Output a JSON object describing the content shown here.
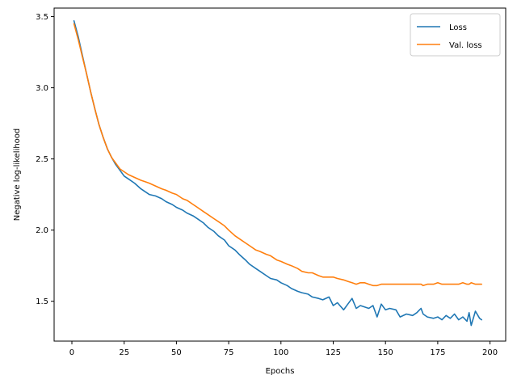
{
  "chart_data": {
    "type": "line",
    "title": "",
    "xlabel": "Epochs",
    "ylabel": "Negative log-likelihood",
    "xlim": [
      -8.5,
      207.5
    ],
    "ylim": [
      1.22,
      3.56
    ],
    "xticks": [
      0,
      25,
      50,
      75,
      100,
      125,
      150,
      175,
      200
    ],
    "yticks": [
      1.5,
      2.0,
      2.5,
      3.0,
      3.5
    ],
    "xtick_labels": [
      "0",
      "25",
      "50",
      "75",
      "100",
      "125",
      "150",
      "175",
      "200"
    ],
    "ytick_labels": [
      "1.5",
      "2.0",
      "2.5",
      "3.0",
      "3.5"
    ],
    "grid": false,
    "legend_position": "top-right",
    "series": [
      {
        "name": "Loss",
        "color": "#1f77b4",
        "x": [
          1,
          3,
          5,
          7,
          9,
          11,
          13,
          15,
          17,
          19,
          21,
          23,
          25,
          27,
          30,
          33,
          35,
          37,
          40,
          43,
          45,
          48,
          50,
          53,
          55,
          58,
          60,
          63,
          65,
          68,
          70,
          73,
          75,
          78,
          80,
          83,
          85,
          88,
          90,
          93,
          95,
          98,
          100,
          103,
          105,
          108,
          110,
          113,
          115,
          118,
          120,
          123,
          125,
          127,
          130,
          132,
          134,
          136,
          138,
          140,
          142,
          144,
          146,
          148,
          150,
          152,
          155,
          157,
          160,
          163,
          165,
          167,
          168,
          170,
          173,
          175,
          177,
          179,
          181,
          183,
          185,
          187,
          189,
          190,
          191,
          193,
          195,
          196
        ],
        "y": [
          3.47,
          3.36,
          3.23,
          3.1,
          2.97,
          2.85,
          2.74,
          2.65,
          2.57,
          2.51,
          2.46,
          2.42,
          2.38,
          2.36,
          2.33,
          2.29,
          2.27,
          2.25,
          2.24,
          2.22,
          2.2,
          2.18,
          2.16,
          2.14,
          2.12,
          2.1,
          2.08,
          2.05,
          2.02,
          1.99,
          1.96,
          1.93,
          1.89,
          1.86,
          1.83,
          1.79,
          1.76,
          1.73,
          1.71,
          1.68,
          1.66,
          1.65,
          1.63,
          1.61,
          1.59,
          1.57,
          1.56,
          1.55,
          1.53,
          1.52,
          1.51,
          1.53,
          1.47,
          1.49,
          1.44,
          1.48,
          1.52,
          1.45,
          1.47,
          1.46,
          1.45,
          1.47,
          1.39,
          1.48,
          1.44,
          1.45,
          1.44,
          1.39,
          1.41,
          1.4,
          1.42,
          1.45,
          1.41,
          1.39,
          1.38,
          1.39,
          1.37,
          1.4,
          1.38,
          1.41,
          1.37,
          1.39,
          1.36,
          1.42,
          1.33,
          1.43,
          1.38,
          1.37
        ]
      },
      {
        "name": "Val. loss",
        "color": "#ff7f0e",
        "x": [
          1,
          3,
          5,
          7,
          9,
          11,
          13,
          15,
          17,
          19,
          21,
          23,
          25,
          27,
          30,
          33,
          35,
          37,
          40,
          43,
          45,
          48,
          50,
          53,
          55,
          58,
          60,
          63,
          65,
          68,
          70,
          73,
          75,
          78,
          80,
          83,
          85,
          88,
          90,
          93,
          95,
          98,
          100,
          103,
          105,
          108,
          110,
          113,
          115,
          118,
          120,
          123,
          125,
          127,
          130,
          132,
          134,
          136,
          138,
          140,
          142,
          144,
          146,
          148,
          150,
          152,
          155,
          157,
          160,
          163,
          165,
          167,
          168,
          170,
          173,
          175,
          177,
          179,
          181,
          183,
          185,
          187,
          189,
          190,
          191,
          193,
          195,
          196
        ],
        "y": [
          3.45,
          3.34,
          3.22,
          3.1,
          2.97,
          2.85,
          2.74,
          2.65,
          2.57,
          2.51,
          2.47,
          2.43,
          2.41,
          2.39,
          2.37,
          2.35,
          2.34,
          2.33,
          2.31,
          2.29,
          2.28,
          2.26,
          2.25,
          2.22,
          2.21,
          2.18,
          2.16,
          2.13,
          2.11,
          2.08,
          2.06,
          2.03,
          2.0,
          1.96,
          1.94,
          1.91,
          1.89,
          1.86,
          1.85,
          1.83,
          1.82,
          1.79,
          1.78,
          1.76,
          1.75,
          1.73,
          1.71,
          1.7,
          1.7,
          1.68,
          1.67,
          1.67,
          1.67,
          1.66,
          1.65,
          1.64,
          1.63,
          1.62,
          1.63,
          1.63,
          1.62,
          1.61,
          1.61,
          1.62,
          1.62,
          1.62,
          1.62,
          1.62,
          1.62,
          1.62,
          1.62,
          1.62,
          1.61,
          1.62,
          1.62,
          1.63,
          1.62,
          1.62,
          1.62,
          1.62,
          1.62,
          1.63,
          1.62,
          1.62,
          1.63,
          1.62,
          1.62,
          1.62
        ]
      }
    ]
  }
}
